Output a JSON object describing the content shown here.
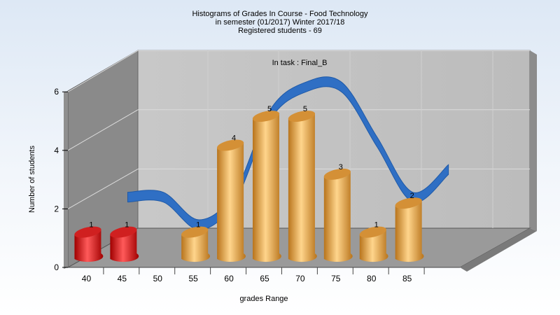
{
  "chart_data": {
    "type": "bar",
    "title": [
      "Histograms of Grades  In Course - Food Technology",
      "in semester  (01/2017) Winter 2017/18",
      "Registered students - 69"
    ],
    "annotation": "In task : Final_B",
    "xlabel": "grades Range",
    "ylabel": "Number of students",
    "categories": [
      "40",
      "45",
      "50",
      "55",
      "60",
      "65",
      "70",
      "75",
      "80",
      "85"
    ],
    "values": [
      1,
      1,
      0,
      1,
      4,
      5,
      5,
      3,
      1,
      2
    ],
    "data_labels": [
      "1",
      "1",
      "",
      "1",
      "4",
      "5",
      "5",
      "3",
      "1",
      "2"
    ],
    "bar_colors": [
      "#e01818",
      "#e01818",
      "#e8a040",
      "#e8a040",
      "#e8a040",
      "#e8a040",
      "#e8a040",
      "#e8a040",
      "#e8a040",
      "#e8a040"
    ],
    "yticks": [
      "0",
      "2",
      "4",
      "6"
    ],
    "ylim": [
      0,
      6
    ],
    "grid": true,
    "curve_color": "#2f6fc4",
    "wall_color": "#a8a8a8",
    "floor_color": "#9a9a9a"
  }
}
